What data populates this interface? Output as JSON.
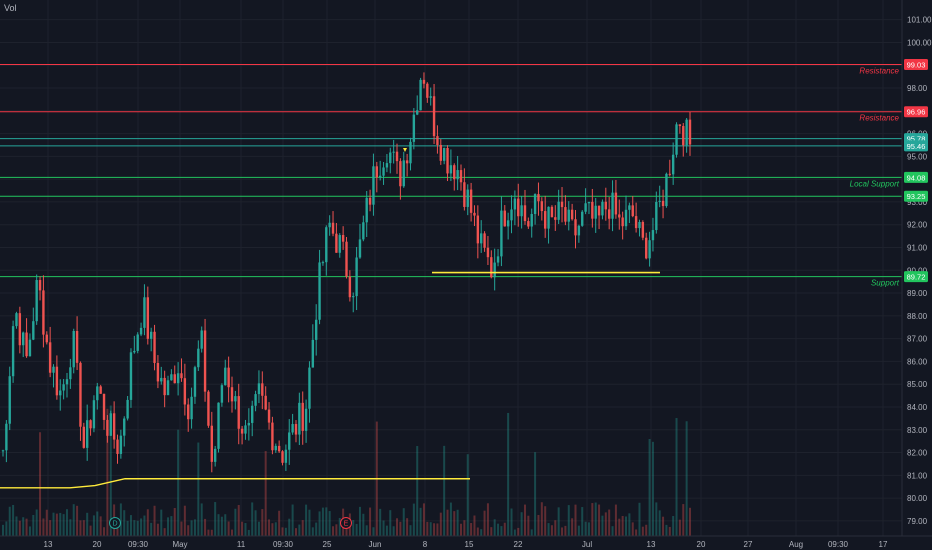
{
  "chart_data": {
    "type": "candlestick",
    "indicator_label": "Vol",
    "y_axis": {
      "ticks": [
        "101.00",
        "100.00",
        "99.00",
        "98.00",
        "97.00",
        "96.00",
        "95.00",
        "94.00",
        "93.00",
        "92.00",
        "91.00",
        "90.00",
        "89.00",
        "88.00",
        "87.00",
        "86.00",
        "85.00",
        "84.00",
        "83.00",
        "82.00",
        "81.00",
        "80.00",
        "79.00"
      ],
      "range": [
        78.6,
        101.6
      ]
    },
    "x_axis": {
      "ticks": [
        "13",
        "20",
        "09:30",
        "May",
        "11",
        "09:30",
        "25",
        "Jun",
        "8",
        "15",
        "22",
        "Jul",
        "13",
        "20",
        "27",
        "Aug",
        "09:30",
        "17"
      ]
    },
    "horizontal_levels": [
      {
        "price": 99.03,
        "tag": "99.03",
        "label": "Resistance",
        "color": "#f23645"
      },
      {
        "price": 96.96,
        "tag": "96.96",
        "label": "Resistance",
        "color": "#f23645"
      },
      {
        "price": 95.78,
        "tag": "95.78",
        "label": "",
        "color": "#26a69a"
      },
      {
        "price": 95.46,
        "tag": "95.46",
        "label": "",
        "color": "#26a69a"
      },
      {
        "price": 94.08,
        "tag": "94.08",
        "label": "Local Support",
        "color": "#22c55e"
      },
      {
        "price": 93.25,
        "tag": "93.25",
        "label": "",
        "color": "#22c55e"
      },
      {
        "price": 89.72,
        "tag": "89.72",
        "label": "Support",
        "color": "#22c55e"
      }
    ],
    "yellow_support_segment": {
      "price": 89.9,
      "from": "8",
      "to": "13"
    },
    "moving_average": {
      "color": "#ffeb3b",
      "points": [
        80.45,
        80.45,
        80.55,
        80.85,
        80.85,
        80.85
      ]
    },
    "price_path": [
      82.0,
      88.5,
      86.0,
      89.5,
      86.0,
      84.5,
      87.0,
      82.0,
      85.0,
      83.2,
      82.2,
      86.0,
      88.5,
      86.0,
      84.5,
      86.0,
      84.0,
      87.0,
      81.2,
      86.0,
      84.0,
      82.5,
      84.5,
      83.0,
      82.0,
      83.0,
      84.0,
      89.0,
      92.0,
      91.0,
      89.2,
      92.0,
      94.5,
      95.5,
      94.0,
      96.0,
      99.0,
      96.5,
      95.0,
      94.5,
      93.0,
      91.0,
      90.0,
      92.5,
      93.5,
      92.0,
      93.0,
      92.0,
      92.5,
      91.5,
      92.5,
      92.0,
      93.0,
      92.0,
      92.5,
      91.0,
      92.0,
      94.0,
      96.8,
      95.5
    ],
    "events": [
      {
        "letter": "D",
        "color": "#26a69a"
      },
      {
        "letter": "E",
        "color": "#f23645"
      }
    ],
    "colors": {
      "background": "#131722",
      "up": "#26a69a",
      "down": "#ef5350",
      "grid": "#1e222d",
      "text": "#b2b5be"
    }
  }
}
